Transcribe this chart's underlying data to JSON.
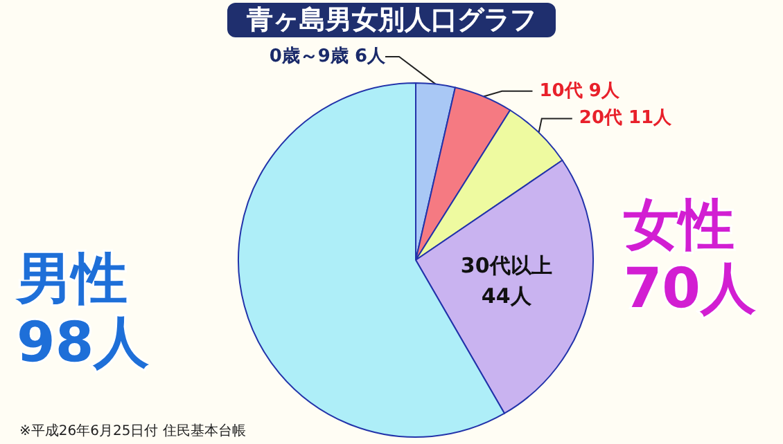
{
  "chart_data": {
    "type": "pie",
    "title": "青ヶ島男女別人口グラフ",
    "categories": [
      "0歳～9歳",
      "10代",
      "20代",
      "30代以上",
      "男性"
    ],
    "values": [
      6,
      9,
      11,
      44,
      98
    ],
    "value_labels": [
      "6人",
      "9人",
      "11人",
      "44人",
      "98人"
    ],
    "colors": [
      "#a9c8f5",
      "#f57a82",
      "#eefaa0",
      "#c9b3f0",
      "#aeeef8"
    ],
    "annotations": [
      "女性 70人",
      "※平成26年6月25日付 住民基本台帳"
    ],
    "legend": false
  }
}
